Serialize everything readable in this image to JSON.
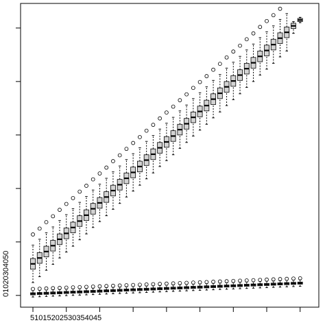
{
  "chart_data": {
    "type": "box",
    "x": [
      5,
      6,
      7,
      8,
      9,
      10,
      11,
      12,
      13,
      14,
      15,
      16,
      17,
      18,
      19,
      20,
      21,
      22,
      23,
      24,
      25,
      26,
      27,
      28,
      29,
      30,
      31,
      32,
      33,
      34,
      35,
      36,
      37,
      38,
      39,
      40,
      41,
      42,
      43,
      44,
      45
    ],
    "xlim": [
      3.15,
      47.8
    ],
    "xticks": [
      5,
      10,
      15,
      20,
      25,
      30,
      35,
      40,
      45
    ],
    "ylim": [
      -2.2,
      54.6
    ],
    "yticks": [
      0,
      10,
      20,
      30,
      40,
      50
    ],
    "series": [
      {
        "color": "#d3d3d3",
        "median": [
          5.9,
          7.0,
          8.2,
          9.3,
          10.5,
          11.6,
          12.7,
          13.9,
          15.0,
          16.2,
          17.3,
          18.4,
          19.6,
          20.7,
          21.9,
          23.0,
          24.1,
          25.3,
          26.4,
          27.6,
          28.7,
          29.8,
          31.0,
          32.1,
          33.3,
          34.4,
          35.5,
          36.7,
          37.8,
          39.0,
          40.1,
          41.2,
          42.4,
          43.5,
          44.7,
          45.8,
          46.9,
          48.1,
          49.2,
          50.4,
          51.5
        ],
        "q1": [
          4.9,
          6.0,
          7.2,
          8.3,
          9.5,
          10.6,
          11.7,
          12.9,
          14.0,
          15.2,
          16.3,
          17.4,
          18.6,
          19.7,
          20.9,
          22.0,
          23.1,
          24.3,
          25.4,
          26.6,
          27.7,
          28.8,
          30.0,
          31.1,
          32.3,
          33.4,
          34.5,
          35.7,
          36.8,
          38.0,
          39.1,
          40.2,
          41.4,
          42.5,
          43.7,
          44.8,
          45.9,
          47.1,
          48.2,
          49.9,
          51.2
        ],
        "q3": [
          6.9,
          8.0,
          9.2,
          10.3,
          11.5,
          12.6,
          13.7,
          14.9,
          16.0,
          17.2,
          18.3,
          19.4,
          20.6,
          21.7,
          22.9,
          24.0,
          25.1,
          26.3,
          27.4,
          28.6,
          29.7,
          30.8,
          32.0,
          33.1,
          34.3,
          35.4,
          36.5,
          37.7,
          38.8,
          40.0,
          41.1,
          42.2,
          43.4,
          44.5,
          45.7,
          46.8,
          47.9,
          49.1,
          50.2,
          50.9,
          51.8
        ],
        "whislo": [
          2.4,
          3.5,
          4.7,
          5.8,
          7.0,
          8.1,
          9.2,
          10.4,
          11.5,
          12.7,
          13.8,
          14.9,
          16.1,
          17.2,
          18.4,
          19.5,
          20.6,
          21.8,
          22.9,
          24.1,
          25.2,
          26.3,
          27.5,
          28.6,
          29.8,
          30.9,
          32.0,
          33.2,
          34.3,
          35.5,
          36.6,
          37.7,
          38.9,
          40.0,
          41.2,
          42.3,
          43.4,
          44.6,
          45.7,
          49.0,
          51.0
        ],
        "whishi": [
          9.4,
          10.5,
          11.7,
          12.8,
          14.0,
          15.1,
          16.2,
          17.4,
          18.5,
          19.7,
          20.8,
          21.9,
          23.1,
          24.2,
          25.4,
          26.5,
          27.6,
          28.8,
          29.9,
          31.1,
          32.2,
          33.3,
          34.5,
          35.6,
          36.8,
          37.9,
          39.0,
          40.2,
          41.3,
          42.5,
          43.6,
          44.7,
          45.9,
          47.0,
          48.2,
          49.3,
          50.4,
          51.6,
          52.7,
          51.2,
          52.0
        ],
        "outliers": [
          [
            11.4
          ],
          [
            12.5
          ],
          [
            13.7
          ],
          [
            14.8
          ],
          [
            16.0
          ],
          [
            17.1
          ],
          [
            18.2
          ],
          [
            19.4
          ],
          [
            20.5
          ],
          [
            21.7
          ],
          [
            22.8
          ],
          [
            23.9
          ],
          [
            25.1
          ],
          [
            26.2
          ],
          [
            27.4
          ],
          [
            28.5
          ],
          [
            29.6
          ],
          [
            30.8
          ],
          [
            31.9
          ],
          [
            33.1
          ],
          [
            34.2
          ],
          [
            35.3
          ],
          [
            36.5
          ],
          [
            37.6
          ],
          [
            38.8
          ],
          [
            39.9
          ],
          [
            41.0
          ],
          [
            42.2
          ],
          [
            43.3
          ],
          [
            44.5
          ],
          [
            45.6
          ],
          [
            46.7
          ],
          [
            47.9
          ],
          [
            49.0
          ],
          [
            50.2
          ],
          [
            51.3
          ],
          [
            52.4
          ],
          [
            53.6
          ],
          [],
          [],
          []
        ]
      },
      {
        "color": "#d3d3d3",
        "median": [
          0.3,
          0.35,
          0.4,
          0.45,
          0.5,
          0.55,
          0.6,
          0.65,
          0.7,
          0.75,
          0.8,
          0.85,
          0.9,
          0.95,
          1,
          1.05,
          1.1,
          1.15,
          1.2,
          1.25,
          1.3,
          1.35,
          1.4,
          1.45,
          1.5,
          1.55,
          1.6,
          1.65,
          1.7,
          1.75,
          1.8,
          1.85,
          1.9,
          1.95,
          2,
          2.05,
          2.1,
          2.15,
          2.2,
          2.25,
          2.3
        ],
        "q1": [
          0.1,
          0.15,
          0.2,
          0.25,
          0.3,
          0.35,
          0.4,
          0.45,
          0.5,
          0.55,
          0.6,
          0.65,
          0.7,
          0.75,
          0.8,
          0.85,
          0.9,
          0.95,
          1,
          1.05,
          1.1,
          1.15,
          1.2,
          1.25,
          1.3,
          1.35,
          1.4,
          1.45,
          1.5,
          1.55,
          1.6,
          1.65,
          1.7,
          1.75,
          1.8,
          1.85,
          1.9,
          1.95,
          2,
          2.05,
          2.1
        ],
        "q3": [
          0.5,
          0.55,
          0.6,
          0.65,
          0.7,
          0.75,
          0.8,
          0.85,
          0.9,
          0.95,
          1,
          1.05,
          1.1,
          1.15,
          1.2,
          1.25,
          1.3,
          1.35,
          1.4,
          1.45,
          1.5,
          1.55,
          1.6,
          1.65,
          1.7,
          1.75,
          1.8,
          1.85,
          1.9,
          1.95,
          2,
          2.05,
          2.1,
          2.15,
          2.2,
          2.25,
          2.3,
          2.35,
          2.4,
          2.45,
          2.5
        ],
        "whislo": [
          -0.3,
          -0.25,
          -0.2,
          -0.15,
          -0.1,
          -0.05,
          0,
          0.05,
          0.1,
          0.15,
          0.2,
          0.25,
          0.3,
          0.35,
          0.4,
          0.45,
          0.5,
          0.55,
          0.6,
          0.65,
          0.7,
          0.75,
          0.8,
          0.85,
          0.9,
          0.95,
          1,
          1.05,
          1.1,
          1.15,
          1.2,
          1.25,
          1.3,
          1.35,
          1.4,
          1.45,
          1.5,
          1.55,
          1.6,
          1.65,
          1.7
        ],
        "whishi": [
          0.9,
          0.95,
          1,
          1.05,
          1.1,
          1.15,
          1.2,
          1.25,
          1.3,
          1.35,
          1.4,
          1.45,
          1.5,
          1.55,
          1.6,
          1.65,
          1.7,
          1.75,
          1.8,
          1.85,
          1.9,
          1.95,
          2,
          2.05,
          2.1,
          2.15,
          2.2,
          2.25,
          2.3,
          2.35,
          2.4,
          2.45,
          2.5,
          2.55,
          2.6,
          2.65,
          2.7,
          2.75,
          2.8,
          2.85,
          2.9
        ],
        "outliers": [
          [
            1.2
          ],
          [
            1.25
          ],
          [
            1.3
          ],
          [
            1.35
          ],
          [
            1.4
          ],
          [
            1.45
          ],
          [
            1.5
          ],
          [
            1.55
          ],
          [
            1.6
          ],
          [
            1.65
          ],
          [
            1.7
          ],
          [
            1.75
          ],
          [
            1.8
          ],
          [
            1.85
          ],
          [
            1.9
          ],
          [
            1.95
          ],
          [
            2
          ],
          [
            2.05
          ],
          [
            2.1
          ],
          [
            2.15
          ],
          [
            2.2
          ],
          [
            2.25
          ],
          [
            2.3
          ],
          [
            2.35
          ],
          [
            2.4
          ],
          [
            2.45
          ],
          [
            2.5
          ],
          [
            2.55
          ],
          [
            2.6
          ],
          [
            2.65
          ],
          [
            2.7
          ],
          [
            2.75
          ],
          [
            2.8
          ],
          [
            2.85
          ],
          [
            2.9
          ],
          [
            2.95
          ],
          [
            3
          ],
          [
            3.05
          ],
          [
            3.1
          ],
          [
            3.15
          ],
          [
            3.2
          ]
        ]
      }
    ]
  }
}
